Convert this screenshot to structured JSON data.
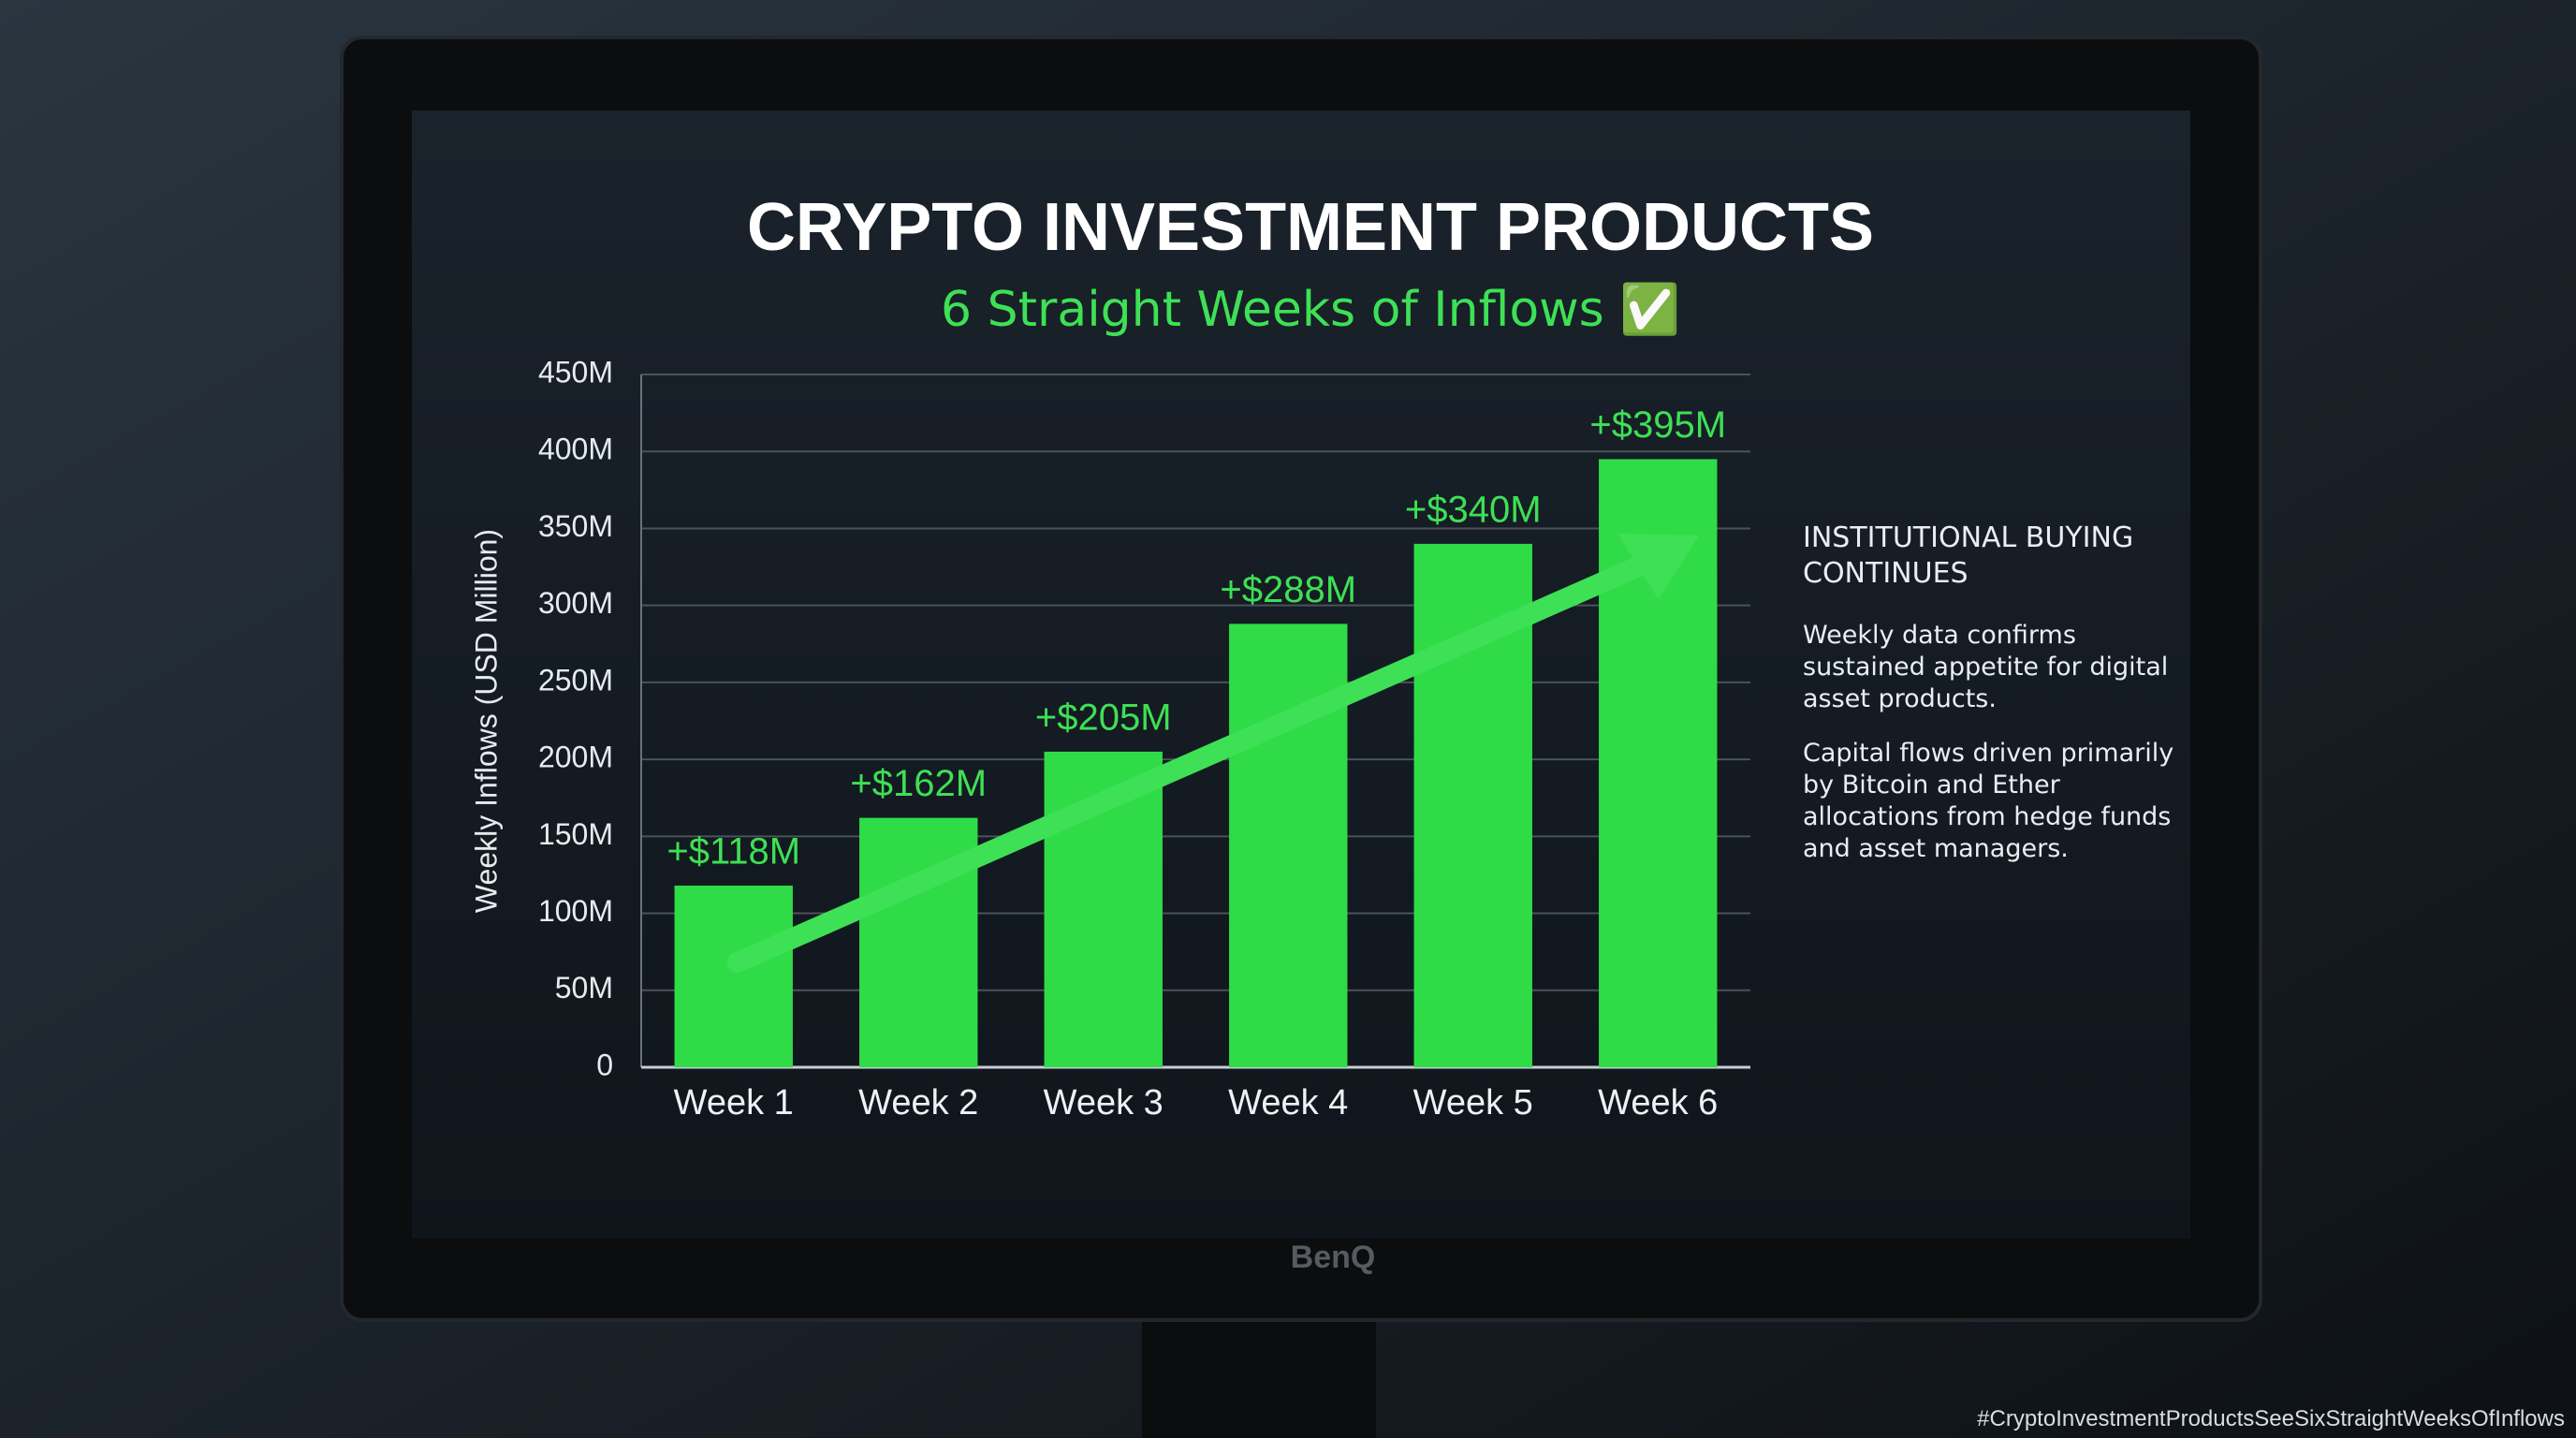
{
  "chart_data": {
    "type": "bar",
    "title": "CRYPTO INVESTMENT PRODUCTS",
    "subtitle": "6 Straight Weeks of Inflows ✅",
    "ylabel": "Weekly Inflows (USD Million)",
    "categories": [
      "Week 1",
      "Week 2",
      "Week 3",
      "Week 4",
      "Week 5",
      "Week 6"
    ],
    "values": [
      118,
      162,
      205,
      288,
      340,
      395
    ],
    "value_labels": [
      "+$118M",
      "+$162M",
      "+$205M",
      "+$288M",
      "+$340M",
      "+$395M"
    ],
    "color": "#2fdc47",
    "ylim": [
      0,
      450
    ],
    "yticks": [
      0,
      {
        "value": 50,
        "label": "50M"
      },
      {
        "value": 100,
        "label": "100M"
      },
      {
        "value": 150,
        "label": "150M"
      },
      {
        "value": 200,
        "label": "200M"
      },
      {
        "value": 250,
        "label": "250M"
      },
      {
        "value": 300,
        "label": "300M"
      },
      {
        "value": 350,
        "label": "350M"
      },
      {
        "value": 400,
        "label": "400M"
      },
      {
        "value": 450,
        "label": "450M"
      }
    ],
    "grid": true
  },
  "side_panel": {
    "heading": "INSTITUTIONAL BUYING CONTINUES",
    "paragraphs": [
      "Weekly data confirms sustained appetite for digital asset products.",
      "Capital flows driven primarily by Bitcoin and Ether allocations from hedge funds and asset managers."
    ]
  },
  "monitor_brand": "BenQ",
  "caption": "#CryptoInvestmentProductsSeeSixStraightWeeksOfInflows"
}
